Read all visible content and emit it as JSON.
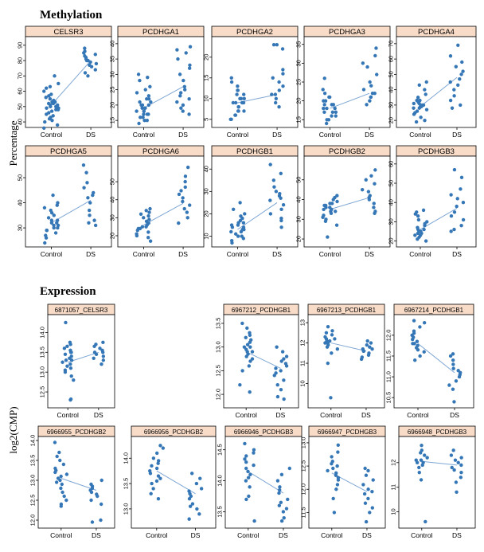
{
  "sections": [
    {
      "title": "Methylation",
      "ylabel": "Percentage"
    },
    {
      "title": "Expression",
      "ylabel": "log2(CMP)"
    }
  ],
  "chart_data": [
    {
      "type": "scatter",
      "group": "methylation",
      "title": "CELSR3",
      "categories": [
        "Control",
        "DS"
      ],
      "ylim": [
        39,
        93
      ],
      "yticks": [
        "40",
        "50",
        "60",
        "70",
        "80",
        "90"
      ],
      "means": [
        51,
        80
      ],
      "control": [
        36,
        38,
        40,
        41,
        42,
        43,
        44,
        45,
        46,
        47,
        48,
        48,
        49,
        49,
        50,
        50,
        51,
        51,
        52,
        52,
        53,
        53,
        54,
        55,
        56,
        57,
        58,
        60,
        62,
        63,
        65,
        70
      ],
      "ds": [
        70,
        72,
        74,
        76,
        77,
        78,
        79,
        80,
        80,
        81,
        82,
        83,
        84,
        85,
        86,
        88
      ]
    },
    {
      "type": "scatter",
      "group": "methylation",
      "title": "PCDHGA1",
      "categories": [
        "Control",
        "DS"
      ],
      "ylim": [
        14,
        41
      ],
      "yticks": [
        "15",
        "20",
        "25",
        "30",
        "35",
        "40"
      ],
      "means": [
        19,
        26
      ],
      "control": [
        14,
        15,
        15,
        16,
        16,
        17,
        17,
        17,
        18,
        18,
        18,
        19,
        19,
        19,
        20,
        20,
        20,
        21,
        21,
        22,
        22,
        23,
        24,
        25,
        26,
        28,
        29,
        30
      ],
      "ds": [
        17,
        18,
        19,
        20,
        21,
        22,
        23,
        24,
        25,
        26,
        28,
        30,
        32,
        33,
        35,
        37,
        38,
        39
      ]
    },
    {
      "type": "scatter",
      "group": "methylation",
      "title": "PCDHGA2",
      "categories": [
        "Control",
        "DS"
      ],
      "ylim": [
        4,
        24
      ],
      "yticks": [
        "5",
        "10",
        "15",
        "20"
      ],
      "means": [
        9,
        11
      ],
      "control": [
        5,
        5,
        6,
        6,
        7,
        7,
        7,
        8,
        8,
        8,
        9,
        9,
        9,
        9,
        10,
        10,
        10,
        11,
        11,
        12,
        12,
        13,
        14,
        15
      ],
      "ds": [
        8,
        9,
        10,
        11,
        11,
        12,
        13,
        14,
        15,
        16,
        17,
        22,
        23,
        23
      ]
    },
    {
      "type": "scatter",
      "group": "methylation",
      "title": "PCDHGA3",
      "categories": [
        "Control",
        "DS"
      ],
      "ylim": [
        14,
        36
      ],
      "yticks": [
        "15",
        "20",
        "25",
        "30",
        "35"
      ],
      "means": [
        18,
        22
      ],
      "control": [
        14,
        15,
        15,
        16,
        16,
        17,
        17,
        17,
        18,
        18,
        18,
        19,
        19,
        19,
        20,
        20,
        21,
        21,
        22,
        23,
        26
      ],
      "ds": [
        19,
        20,
        21,
        21,
        22,
        22,
        23,
        24,
        25,
        27,
        29,
        30,
        32,
        34
      ]
    },
    {
      "type": "scatter",
      "group": "methylation",
      "title": "PCDHGA4",
      "categories": [
        "Control",
        "DS"
      ],
      "ylim": [
        18,
        72
      ],
      "yticks": [
        "20",
        "30",
        "40",
        "50",
        "60",
        "70"
      ],
      "means": [
        29,
        48
      ],
      "control": [
        19,
        20,
        22,
        24,
        25,
        26,
        27,
        28,
        28,
        29,
        29,
        30,
        30,
        31,
        31,
        32,
        33,
        33,
        35,
        37,
        40,
        43,
        45
      ],
      "ds": [
        28,
        30,
        33,
        36,
        40,
        43,
        45,
        47,
        50,
        52,
        55,
        58,
        62,
        69
      ]
    },
    {
      "type": "scatter",
      "group": "methylation",
      "title": "PCDHGA5",
      "categories": [
        "Control",
        "DS"
      ],
      "ylim": [
        24,
        57
      ],
      "yticks": [
        "30",
        "40",
        "50"
      ],
      "means": [
        32,
        41
      ],
      "control": [
        24,
        26,
        27,
        28,
        29,
        29,
        30,
        30,
        31,
        31,
        32,
        32,
        33,
        33,
        34,
        35,
        36,
        37,
        38,
        39,
        40,
        43
      ],
      "ds": [
        31,
        32,
        33,
        35,
        37,
        40,
        42,
        43,
        44,
        46,
        48,
        52,
        55
      ]
    },
    {
      "type": "scatter",
      "group": "methylation",
      "title": "PCDHGA6",
      "categories": [
        "Control",
        "DS"
      ],
      "ylim": [
        16,
        62
      ],
      "yticks": [
        "20",
        "30",
        "40",
        "50"
      ],
      "means": [
        26,
        38
      ],
      "control": [
        17,
        19,
        20,
        21,
        22,
        23,
        24,
        24,
        25,
        25,
        26,
        27,
        28,
        29,
        30,
        31,
        32,
        33,
        34,
        35
      ],
      "ds": [
        27,
        30,
        33,
        35,
        37,
        39,
        41,
        43,
        45,
        47,
        50,
        53,
        58
      ]
    },
    {
      "type": "scatter",
      "group": "methylation",
      "title": "PCDHGB1",
      "categories": [
        "Control",
        "DS"
      ],
      "ylim": [
        7,
        44
      ],
      "yticks": [
        "10",
        "20",
        "30",
        "40"
      ],
      "means": [
        13,
        25
      ],
      "control": [
        7,
        8,
        9,
        10,
        10,
        11,
        12,
        12,
        13,
        13,
        14,
        14,
        15,
        15,
        16,
        16,
        17,
        18,
        19,
        20,
        22,
        25
      ],
      "ds": [
        14,
        17,
        18,
        20,
        22,
        24,
        26,
        27,
        28,
        29,
        30,
        32,
        35,
        38,
        42
      ]
    },
    {
      "type": "scatter",
      "group": "methylation",
      "title": "PCDHGB2",
      "categories": [
        "Control",
        "DS"
      ],
      "ylim": [
        18,
        60
      ],
      "yticks": [
        "20",
        "30",
        "40",
        "50"
      ],
      "means": [
        35,
        41
      ],
      "control": [
        21,
        27,
        29,
        30,
        31,
        32,
        33,
        34,
        34,
        35,
        35,
        36,
        36,
        37,
        37,
        38,
        38,
        39,
        40,
        41,
        42
      ],
      "ds": [
        33,
        34,
        36,
        38,
        40,
        41,
        42,
        44,
        45,
        48,
        50,
        52,
        55
      ]
    },
    {
      "type": "scatter",
      "group": "methylation",
      "title": "PCDHGB3",
      "categories": [
        "Control",
        "DS"
      ],
      "ylim": [
        19,
        62
      ],
      "yticks": [
        "20",
        "30",
        "40",
        "50",
        "60"
      ],
      "means": [
        26,
        37
      ],
      "control": [
        20,
        21,
        22,
        23,
        23,
        24,
        24,
        25,
        25,
        26,
        26,
        27,
        28,
        29,
        30,
        31,
        33,
        34,
        35,
        36
      ],
      "ds": [
        25,
        26,
        28,
        31,
        33,
        35,
        38,
        40,
        42,
        44,
        47,
        53,
        57
      ]
    },
    {
      "type": "scatter",
      "group": "expression",
      "title": "6871057_CELSR3",
      "categories": [
        "Control",
        "DS"
      ],
      "ylim": [
        12.2,
        14.35
      ],
      "yticks": [
        "12.5",
        "13.0",
        "13.5",
        "14.0"
      ],
      "means": [
        13.25,
        13.5
      ],
      "control": [
        12.3,
        12.32,
        12.8,
        12.9,
        13.0,
        13.05,
        13.1,
        13.15,
        13.2,
        13.25,
        13.3,
        13.3,
        13.35,
        13.4,
        13.45,
        13.5,
        13.5,
        13.55,
        13.6,
        13.65,
        13.7,
        13.75,
        14.25
      ],
      "ds": [
        13.2,
        13.3,
        13.35,
        13.4,
        13.45,
        13.5,
        13.5,
        13.55,
        13.6,
        13.65,
        13.7,
        13.75
      ]
    },
    {
      "type": "scatter",
      "group": "expression",
      "title": "6967212_PCDHGB1",
      "categories": [
        "Control",
        "DS"
      ],
      "ylim": [
        11.8,
        13.6
      ],
      "yticks": [
        "12.0",
        "12.5",
        "13.0",
        "13.5"
      ],
      "means": [
        12.9,
        12.55
      ],
      "control": [
        12.05,
        12.2,
        12.5,
        12.6,
        12.7,
        12.75,
        12.8,
        12.85,
        12.9,
        12.9,
        12.95,
        13.0,
        13.0,
        13.05,
        13.1,
        13.15,
        13.2,
        13.25,
        13.3,
        13.4,
        13.5
      ],
      "ds": [
        11.9,
        11.95,
        12.1,
        12.2,
        12.3,
        12.4,
        12.45,
        12.5,
        12.55,
        12.6,
        12.65,
        12.7,
        12.75,
        12.8,
        12.9,
        13.0
      ]
    },
    {
      "type": "scatter",
      "group": "expression",
      "title": "6967213_PCDHGB1",
      "categories": [
        "Control",
        "DS"
      ],
      "ylim": [
        9.0,
        13.2
      ],
      "yticks": [
        "10",
        "11",
        "12",
        "13"
      ],
      "means": [
        12.0,
        11.6
      ],
      "control": [
        9.3,
        11.0,
        11.5,
        11.7,
        11.8,
        11.9,
        12.0,
        12.0,
        12.1,
        12.1,
        12.2,
        12.2,
        12.3,
        12.4,
        12.5,
        12.6,
        12.8
      ],
      "ds": [
        11.2,
        11.3,
        11.4,
        11.5,
        11.6,
        11.6,
        11.7,
        11.7,
        11.8,
        11.9,
        12.0,
        12.1
      ]
    },
    {
      "type": "scatter",
      "group": "expression",
      "title": "6967214_PCDHGB1",
      "categories": [
        "Control",
        "DS"
      ],
      "ylim": [
        10.35,
        12.4
      ],
      "yticks": [
        "10.5",
        "11.0",
        "11.5",
        "12.0"
      ],
      "means": [
        11.8,
        11.1
      ],
      "control": [
        11.4,
        11.5,
        11.6,
        11.65,
        11.7,
        11.75,
        11.8,
        11.8,
        11.85,
        11.9,
        11.95,
        12.0,
        12.05,
        12.1,
        12.2,
        12.3,
        12.35
      ],
      "ds": [
        10.4,
        10.7,
        10.8,
        10.9,
        11.0,
        11.05,
        11.1,
        11.15,
        11.2,
        11.3,
        11.4,
        11.5,
        11.55
      ]
    },
    {
      "type": "scatter",
      "group": "expression",
      "title": "6966955_PCDHGB2",
      "categories": [
        "Control",
        "DS"
      ],
      "ylim": [
        11.9,
        14.0
      ],
      "yticks": [
        "12.0",
        "12.5",
        "13.0",
        "13.5",
        "14.0"
      ],
      "means": [
        13.05,
        12.75
      ],
      "control": [
        12.35,
        12.4,
        12.5,
        12.6,
        12.7,
        12.8,
        12.9,
        12.95,
        13.0,
        13.05,
        13.1,
        13.15,
        13.2,
        13.25,
        13.3,
        13.4,
        13.5,
        13.6,
        13.7,
        13.95
      ],
      "ds": [
        11.95,
        12.0,
        12.4,
        12.5,
        12.6,
        12.65,
        12.7,
        12.75,
        12.8,
        12.85,
        12.9,
        13.0
      ]
    },
    {
      "type": "scatter",
      "group": "expression",
      "title": "6966956_PCDHGB2",
      "categories": [
        "Control",
        "DS"
      ],
      "ylim": [
        12.7,
        14.35
      ],
      "yticks": [
        "13.0",
        "13.5",
        "14.0"
      ],
      "means": [
        13.75,
        13.3
      ],
      "control": [
        13.2,
        13.3,
        13.4,
        13.5,
        13.55,
        13.6,
        13.65,
        13.7,
        13.75,
        13.8,
        13.85,
        13.9,
        13.95,
        14.0,
        14.1,
        14.2,
        14.25
      ],
      "ds": [
        12.8,
        12.9,
        13.0,
        13.05,
        13.1,
        13.2,
        13.25,
        13.3,
        13.35,
        13.4,
        13.5,
        13.6,
        13.7
      ]
    },
    {
      "type": "scatter",
      "group": "expression",
      "title": "6966946_PCDHGB3",
      "categories": [
        "Control",
        "DS"
      ],
      "ylim": [
        13.3,
        14.65
      ],
      "yticks": [
        "13.5",
        "14.0",
        "14.5"
      ],
      "means": [
        14.15,
        13.8
      ],
      "control": [
        13.35,
        13.7,
        13.75,
        13.9,
        14.0,
        14.05,
        14.1,
        14.15,
        14.2,
        14.25,
        14.3,
        14.35,
        14.4,
        14.45,
        14.5,
        14.6
      ],
      "ds": [
        13.35,
        13.4,
        13.5,
        13.55,
        13.6,
        13.65,
        13.7,
        13.8,
        13.85,
        13.9,
        14.0,
        14.1,
        14.2
      ]
    },
    {
      "type": "scatter",
      "group": "expression",
      "title": "6966947_PCDHGB3",
      "categories": [
        "Control",
        "DS"
      ],
      "ylim": [
        11.25,
        13.05
      ],
      "yticks": [
        "11.5",
        "12.0",
        "12.5",
        "13.0"
      ],
      "means": [
        12.35,
        11.95
      ],
      "control": [
        11.5,
        11.8,
        12.0,
        12.1,
        12.2,
        12.25,
        12.3,
        12.35,
        12.4,
        12.45,
        12.5,
        12.55,
        12.6,
        12.7,
        12.8,
        12.95
      ],
      "ds": [
        11.3,
        11.5,
        11.6,
        11.7,
        11.8,
        11.9,
        11.95,
        12.0,
        12.1,
        12.2,
        12.3,
        12.4,
        12.45
      ]
    },
    {
      "type": "scatter",
      "group": "expression",
      "title": "6966948_PCDHGB3",
      "categories": [
        "Control",
        "DS"
      ],
      "ylim": [
        9.5,
        12.9
      ],
      "yticks": [
        "10",
        "11",
        "12"
      ],
      "means": [
        12.05,
        11.9
      ],
      "control": [
        9.6,
        11.3,
        11.6,
        11.8,
        11.9,
        12.0,
        12.0,
        12.1,
        12.1,
        12.2,
        12.3,
        12.4,
        12.5,
        12.7
      ],
      "ds": [
        10.8,
        11.2,
        11.4,
        11.6,
        11.7,
        11.8,
        11.9,
        12.0,
        12.1,
        12.2,
        12.3,
        12.5
      ]
    }
  ]
}
